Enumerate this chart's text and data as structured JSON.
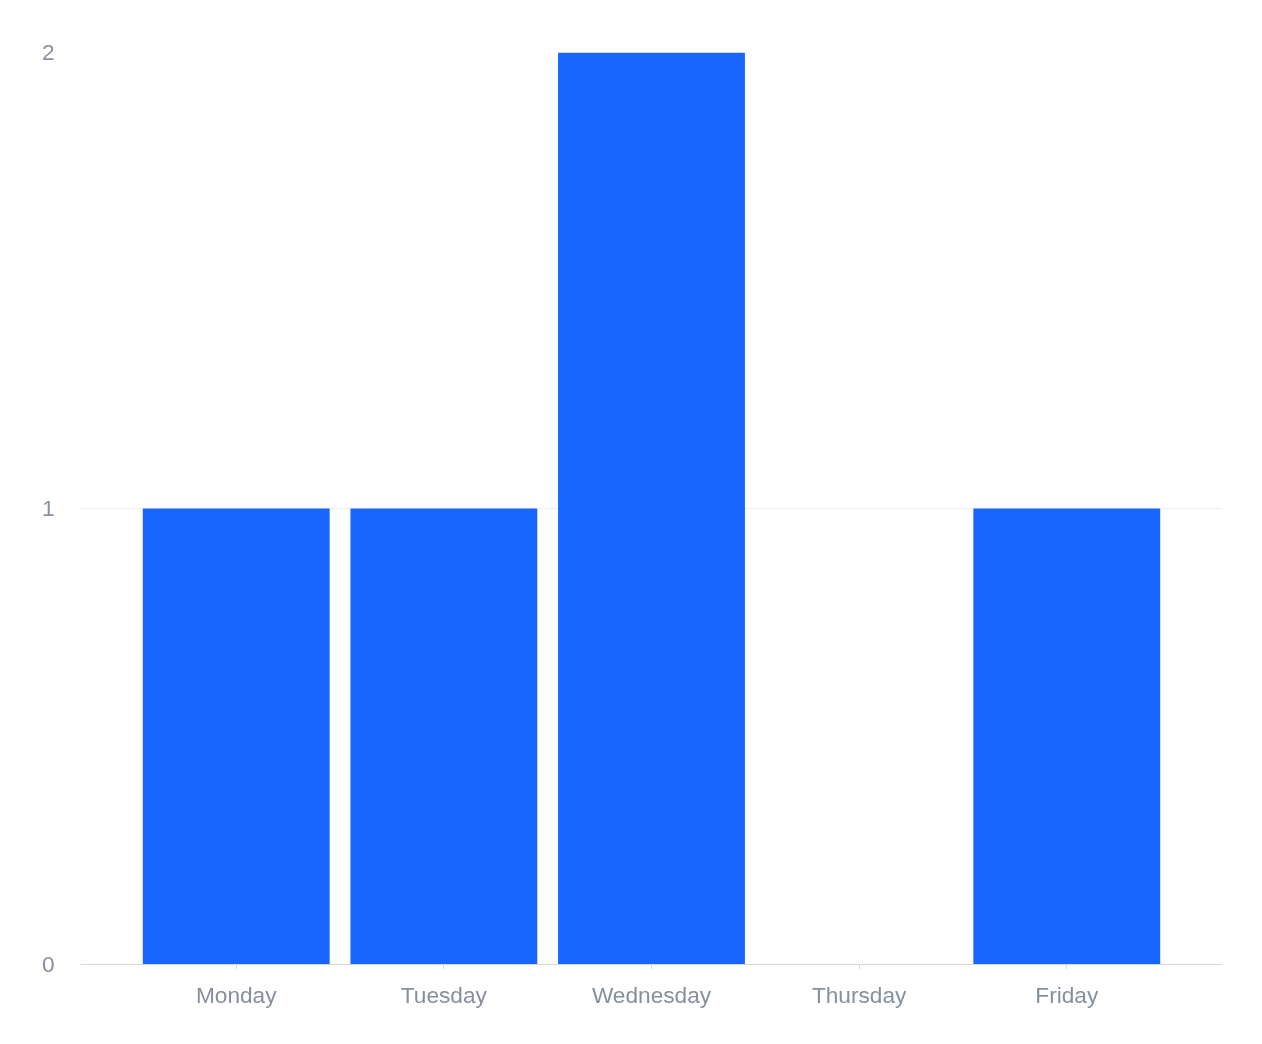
{
  "chart_data": {
    "type": "bar",
    "categories": [
      "Monday",
      "Tuesday",
      "Wednesday",
      "Thursday",
      "Friday"
    ],
    "values": [
      1,
      1,
      2,
      0,
      1
    ],
    "color": "#1966ff",
    "ylim": [
      0,
      2
    ],
    "yticks": [
      0,
      1,
      2
    ],
    "grid": "y"
  }
}
